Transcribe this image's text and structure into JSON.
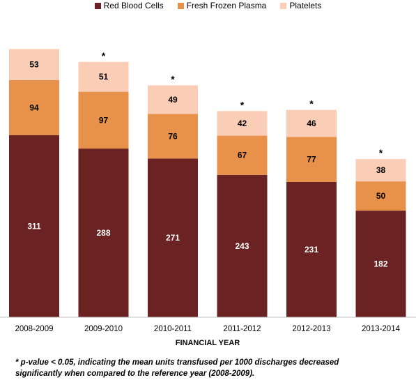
{
  "chart_data": {
    "type": "bar",
    "stacked": true,
    "categories": [
      "2008-2009",
      "2009-2010",
      "2010-2011",
      "2011-2012",
      "2012-2013",
      "2013-2014"
    ],
    "series": [
      {
        "name": "Red Blood Cells",
        "color": "#6b2222",
        "values": [
          311,
          288,
          271,
          243,
          231,
          182
        ]
      },
      {
        "name": "Fresh Frozen Plasma",
        "color": "#e8914a",
        "values": [
          94,
          97,
          76,
          67,
          77,
          50
        ]
      },
      {
        "name": "Platelets",
        "color": "#f9cdb6",
        "values": [
          53,
          51,
          49,
          42,
          46,
          38
        ]
      }
    ],
    "significance_marker": "*",
    "significant": [
      false,
      true,
      true,
      true,
      true,
      true
    ],
    "xlabel": "FINANCIAL YEAR",
    "ylabel": "",
    "legend_position": "top",
    "grid": false
  },
  "footnote": {
    "line1": "* p-value < 0.05, indicating the mean units transfused per 1000 discharges decreased",
    "line2": "significantly when compared to the reference year (2008-2009)."
  }
}
